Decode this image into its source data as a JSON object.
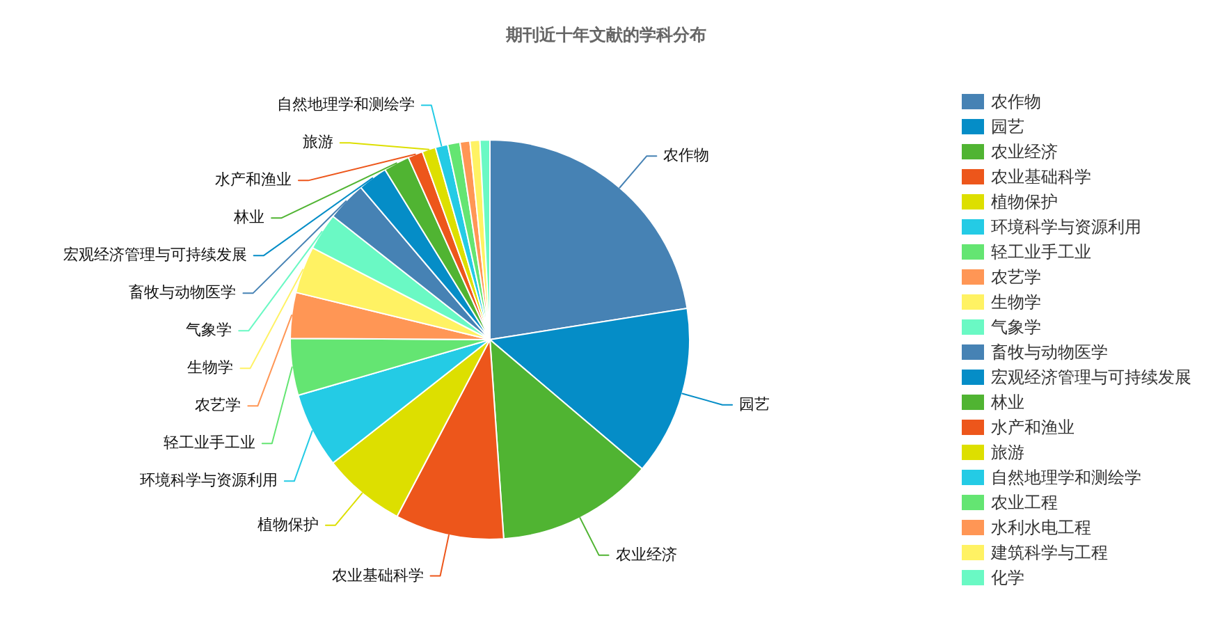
{
  "chart_data": {
    "type": "pie",
    "title": "期刊近十年文献的学科分布",
    "categories": [
      "农作物",
      "园艺",
      "农业经济",
      "农业基础科学",
      "植物保护",
      "环境科学与资源利用",
      "轻工业手工业",
      "农艺学",
      "生物学",
      "气象学",
      "畜牧与动物医学",
      "宏观经济管理与可持续发展",
      "林业",
      "水产和渔业",
      "旅游",
      "自然地理学和测绘学",
      "农业工程",
      "水利水电工程",
      "建筑科学与工程",
      "化学"
    ],
    "values": [
      22.5,
      13.7,
      12.7,
      8.8,
      6.7,
      6.1,
      4.6,
      3.7,
      3.8,
      3.0,
      3.2,
      2.4,
      2.1,
      1.2,
      1.1,
      1.0,
      1.0,
      0.8,
      0.8,
      0.8
    ],
    "colors": [
      "#4682b4",
      "#058dc7",
      "#50b432",
      "#ed561b",
      "#dddf00",
      "#24cbe5",
      "#64e572",
      "#ff9655",
      "#fff263",
      "#6af9c4",
      "#4682b4",
      "#058dc7",
      "#50b432",
      "#ed561b",
      "#dddf00",
      "#24cbe5",
      "#64e572",
      "#ff9655",
      "#fff263",
      "#6af9c4"
    ],
    "legend": "right"
  }
}
